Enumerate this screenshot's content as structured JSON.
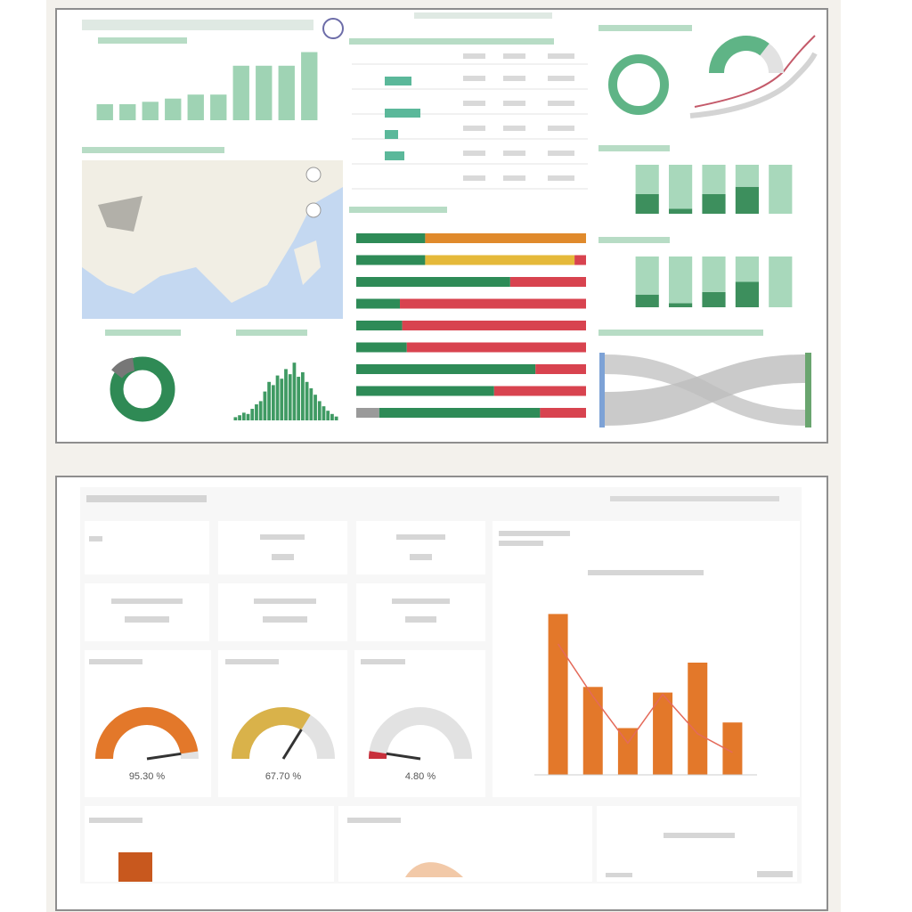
{
  "top_dashboard": {
    "column_chart": {
      "type": "bar",
      "values": [
        20,
        20,
        23,
        27,
        32,
        32,
        68,
        68,
        68,
        85
      ],
      "ylim": [
        0,
        100
      ],
      "color": "#9fd3b4"
    },
    "histogram": {
      "type": "bar",
      "values": [
        5,
        8,
        12,
        10,
        18,
        25,
        30,
        45,
        60,
        55,
        70,
        65,
        80,
        72,
        90,
        68,
        75,
        60,
        50,
        40,
        30,
        22,
        15,
        10,
        6
      ],
      "ylim": [
        0,
        100
      ],
      "color": "#3f9a63"
    },
    "gauge": {
      "value": 71,
      "ylim": [
        0,
        100
      ],
      "color": "#5fb486"
    },
    "stacked_bars": {
      "type": "stacked_bar",
      "xlim": [
        0,
        100
      ],
      "series": [
        {
          "color": "#9a9a9a",
          "values": [
            0,
            0,
            0,
            0,
            0,
            0,
            0,
            0,
            10
          ]
        },
        {
          "color": "#2e8b57",
          "values": [
            30,
            30,
            67,
            19,
            20,
            22,
            78,
            60,
            70
          ]
        },
        {
          "color": "#e5b93a",
          "values": [
            0,
            65,
            0,
            0,
            0,
            0,
            0,
            0,
            0
          ]
        },
        {
          "color": "#e08a2c",
          "values": [
            70,
            0,
            0,
            0,
            0,
            0,
            0,
            0,
            0
          ]
        },
        {
          "color": "#d8434f",
          "values": [
            0,
            5,
            33,
            81,
            80,
            78,
            22,
            40,
            20
          ]
        }
      ]
    },
    "stacked_columns": [
      {
        "type": "stacked_bar",
        "ylim": [
          0,
          100
        ],
        "series": [
          {
            "color": "#3d8f5d",
            "values": [
              40,
              10,
              40,
              55,
              0
            ]
          },
          {
            "color": "#a8d8bb",
            "values": [
              60,
              90,
              60,
              45,
              100
            ]
          }
        ]
      },
      {
        "type": "stacked_bar",
        "ylim": [
          0,
          100
        ],
        "series": [
          {
            "color": "#3d8f5d",
            "values": [
              25,
              8,
              30,
              50,
              0
            ]
          },
          {
            "color": "#a8d8bb",
            "values": [
              75,
              92,
              70,
              50,
              100
            ]
          }
        ]
      }
    ]
  },
  "bottom_dashboard": {
    "gauges": [
      {
        "value": 95.3,
        "value_label": "95.30 %",
        "color": "#e3782a"
      },
      {
        "value": 67.7,
        "value_label": "67.70 %",
        "color": "#d9b24a"
      },
      {
        "value": 4.8,
        "value_label": "4.80 %",
        "color": "#c8303c"
      }
    ],
    "gauge_range": [
      0,
      100
    ],
    "combo_chart": {
      "type": "bar",
      "values": [
        86,
        47,
        25,
        44,
        60,
        28
      ],
      "line_values": [
        70,
        42,
        17,
        43,
        22,
        12
      ],
      "ylim": [
        0,
        100
      ],
      "y2lim": [
        0,
        100
      ],
      "color": "#e3782a",
      "line_color": "#e46a5a"
    },
    "small_bar": {
      "values": [
        60
      ],
      "ylim": [
        0,
        100
      ],
      "color": "#c8581e"
    }
  }
}
